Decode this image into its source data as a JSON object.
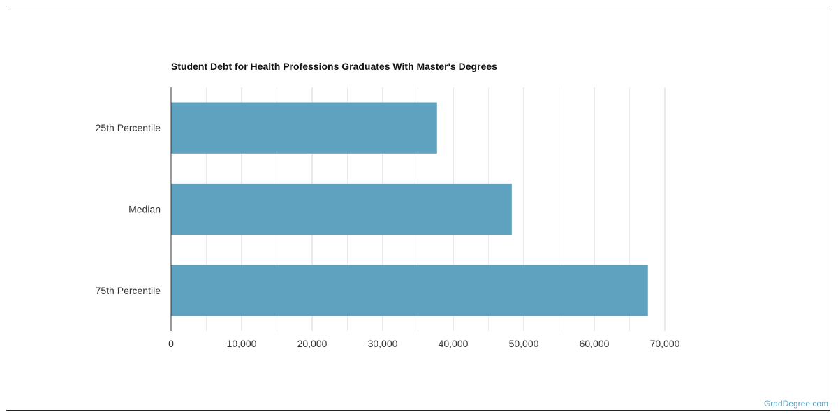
{
  "chart_data": {
    "type": "bar",
    "orientation": "horizontal",
    "title": "Student Debt for Health Professions Graduates With Master's Degrees",
    "categories": [
      "25th Percentile",
      "Median",
      "75th Percentile"
    ],
    "values": [
      37700,
      48300,
      67600
    ],
    "xlim": [
      0,
      70000
    ],
    "xticks": [
      0,
      10000,
      20000,
      30000,
      40000,
      50000,
      60000,
      70000
    ],
    "xtick_labels": [
      "0",
      "10,000",
      "20,000",
      "30,000",
      "40,000",
      "50,000",
      "60,000",
      "70,000"
    ],
    "xlabel": "",
    "ylabel": "",
    "grid": true,
    "bar_color": "#5ea2bf"
  },
  "watermark": {
    "text": "GradDegree.com",
    "color": "#5ea2bf"
  }
}
